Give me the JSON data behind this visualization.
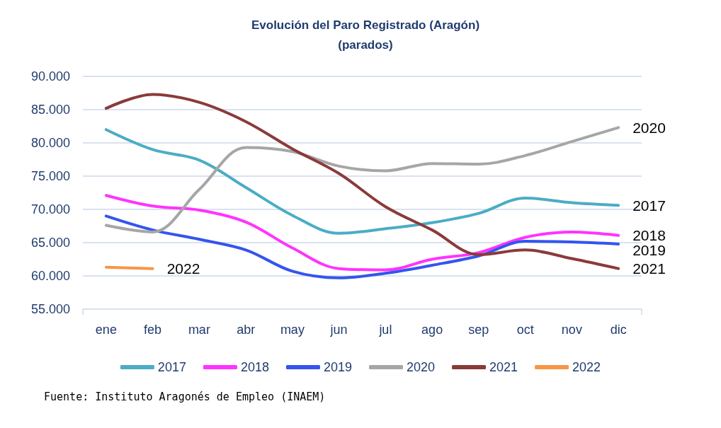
{
  "chart_data": {
    "type": "line",
    "title": "Evolución del Paro Registrado (Aragón)",
    "subtitle": "(parados)",
    "categories": [
      "ene",
      "feb",
      "mar",
      "abr",
      "may",
      "jun",
      "jul",
      "ago",
      "sep",
      "oct",
      "nov",
      "dic"
    ],
    "series": [
      {
        "name": "2017",
        "color": "#4bacc6",
        "values": [
          82000,
          79000,
          77400,
          73300,
          69100,
          66400,
          67100,
          68000,
          69400,
          71700,
          71000,
          70600
        ]
      },
      {
        "name": "2018",
        "color": "#ff33ff",
        "values": [
          72100,
          70500,
          69900,
          68100,
          64200,
          61100,
          60900,
          62500,
          63500,
          65800,
          66600,
          66100
        ]
      },
      {
        "name": "2019",
        "color": "#3355ee",
        "values": [
          69000,
          66900,
          65500,
          63900,
          60700,
          59700,
          60400,
          61600,
          63000,
          65200,
          65100,
          64800
        ]
      },
      {
        "name": "2020",
        "color": "#a6a6a6",
        "values": [
          67600,
          66600,
          73000,
          79300,
          78700,
          76500,
          75800,
          76900,
          76800,
          78100,
          80200,
          82300
        ]
      },
      {
        "name": "2021",
        "color": "#8b3a3a",
        "values": [
          85200,
          87300,
          86100,
          83200,
          79100,
          75400,
          70400,
          66900,
          63200,
          63900,
          62600,
          61100
        ]
      },
      {
        "name": "2022",
        "color": "#f79646",
        "values": [
          61300,
          61100,
          null,
          null,
          null,
          null,
          null,
          null,
          null,
          null,
          null,
          null
        ]
      }
    ],
    "ylim": [
      55000,
      90000
    ],
    "yticks": [
      {
        "value": 55000,
        "label": "55.000"
      },
      {
        "value": 60000,
        "label": "60.000"
      },
      {
        "value": 65000,
        "label": "65.000"
      },
      {
        "value": 70000,
        "label": "70.000"
      },
      {
        "value": 75000,
        "label": "75.000"
      },
      {
        "value": 80000,
        "label": "80.000"
      },
      {
        "value": 85000,
        "label": "85.000"
      },
      {
        "value": 90000,
        "label": "90.000"
      }
    ],
    "grid": "y",
    "legend": "bottom",
    "marker": "none",
    "line_style": "solid",
    "annotations": [
      "Fuente: Instituto Aragonés de Empleo (INAEM)"
    ]
  }
}
